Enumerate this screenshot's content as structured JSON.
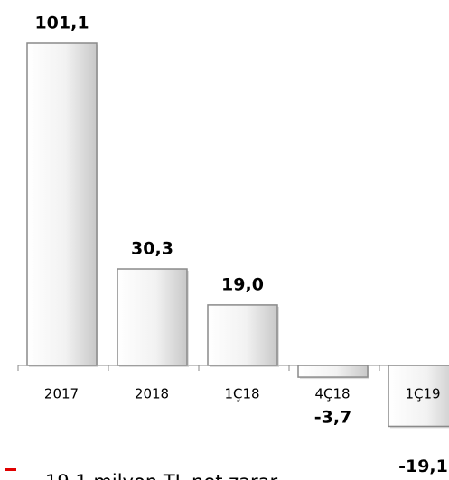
{
  "chart_data": {
    "type": "bar",
    "categories": [
      "2017",
      "2018",
      "1Ç18",
      "4Ç18",
      "1Ç19"
    ],
    "values": [
      101.1,
      30.3,
      19.0,
      -3.7,
      -19.1
    ],
    "value_labels": [
      "101,1",
      "30,3",
      "19,0",
      "-3,7",
      "-19,1"
    ],
    "color": "#e6e6e6",
    "annotation": "19,1 milyon TL net zarar"
  }
}
